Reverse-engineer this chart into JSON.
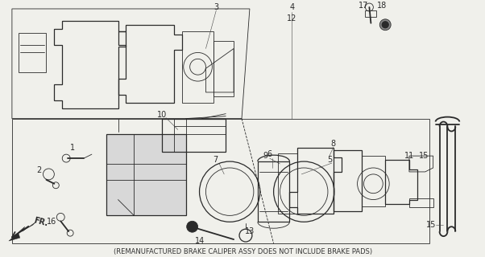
{
  "background_color": "#f0f0eb",
  "line_color": "#2a2a2a",
  "subtitle": "(REMANUFACTURED BRAKE CALIPER ASSY DOES NOT INCLUDE BRAKE PADS)",
  "subtitle_fontsize": 6.0,
  "label_fontsize": 7.0,
  "fig_width": 6.02,
  "fig_height": 3.2,
  "dpi": 100
}
